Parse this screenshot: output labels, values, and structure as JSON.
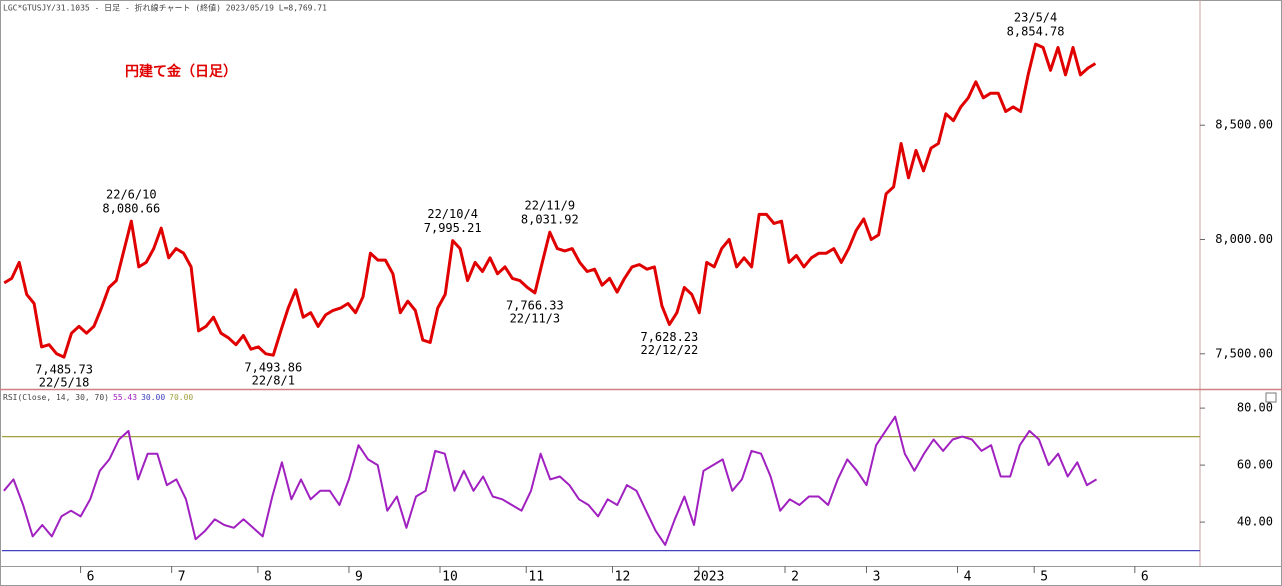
{
  "chart_data": [
    {
      "type": "line",
      "header": "LGC*GTUSJY/31.1035 - 日足 - 折れ線チャート (終値)  2023/05/19 L=8,769.71",
      "title": "円建て金（日足）",
      "color": "#e00000",
      "categories": [
        null,
        null,
        null,
        null,
        null,
        null,
        null,
        null,
        "22/5/18",
        null,
        null,
        null,
        null,
        null,
        null,
        null,
        null,
        "22/6/10",
        null,
        null,
        null,
        null,
        null,
        null,
        null,
        null,
        null,
        null,
        null,
        null,
        null,
        null,
        null,
        null,
        null,
        null,
        "22/8/1",
        null,
        null,
        null,
        null,
        null,
        null,
        null,
        null,
        null,
        null,
        null,
        null,
        null,
        null,
        null,
        null,
        null,
        null,
        null,
        null,
        null,
        null,
        null,
        "22/10/4",
        null,
        null,
        null,
        null,
        null,
        null,
        null,
        null,
        null,
        null,
        "22/11/3",
        null,
        "22/11/9",
        null,
        null,
        null,
        null,
        null,
        null,
        null,
        null,
        null,
        null,
        null,
        null,
        null,
        null,
        null,
        "22/12/22",
        null,
        null,
        null,
        null,
        null,
        null,
        null,
        null,
        null,
        null,
        null,
        null,
        null,
        null,
        null,
        null,
        null,
        null,
        null,
        null,
        null,
        null,
        null,
        null,
        null,
        null,
        null,
        null,
        null,
        null,
        null,
        null,
        null,
        null,
        null,
        null,
        null,
        null,
        null,
        null,
        null,
        null,
        null,
        null,
        null,
        null,
        null,
        null,
        "23/5/4",
        null,
        null,
        null,
        null,
        null,
        null,
        null,
        null
      ],
      "values": [
        7810,
        7830,
        7900,
        7760,
        7720,
        7530,
        7540,
        7500,
        7485.73,
        7590,
        7620,
        7590,
        7620,
        7700,
        7790,
        7820,
        7950,
        8080.66,
        7880,
        7900,
        7960,
        8050,
        7920,
        7960,
        7940,
        7880,
        7600,
        7620,
        7660,
        7590,
        7570,
        7540,
        7580,
        7520,
        7530,
        7500,
        7493.86,
        7600,
        7700,
        7780,
        7660,
        7680,
        7620,
        7670,
        7690,
        7700,
        7720,
        7680,
        7750,
        7940,
        7910,
        7910,
        7850,
        7680,
        7730,
        7690,
        7560,
        7550,
        7700,
        7760,
        7995.21,
        7960,
        7820,
        7900,
        7860,
        7920,
        7850,
        7880,
        7830,
        7820,
        7790,
        7766.33,
        7900,
        8031.92,
        7960,
        7950,
        7960,
        7900,
        7860,
        7870,
        7800,
        7830,
        7770,
        7830,
        7880,
        7890,
        7870,
        7880,
        7710,
        7628.23,
        7680,
        7790,
        7760,
        7680,
        7900,
        7880,
        7960,
        8000,
        7880,
        7920,
        7880,
        8110,
        8110,
        8070,
        8080,
        7900,
        7930,
        7880,
        7920,
        7940,
        7940,
        7960,
        7900,
        7960,
        8040,
        8090,
        8000,
        8020,
        8200,
        8230,
        8420,
        8270,
        8390,
        8300,
        8400,
        8420,
        8550,
        8520,
        8580,
        8620,
        8690,
        8620,
        8640,
        8640,
        8560,
        8580,
        8560,
        8720,
        8854.78,
        8840,
        8740,
        8840,
        8720,
        8840,
        8720,
        8750,
        8770
      ],
      "value_labels": [
        null,
        null,
        null,
        null,
        null,
        null,
        null,
        null,
        "7,485.73",
        null,
        null,
        null,
        null,
        null,
        null,
        null,
        null,
        "8,080.66",
        null,
        null,
        null,
        null,
        null,
        null,
        null,
        null,
        null,
        null,
        null,
        null,
        null,
        null,
        null,
        null,
        null,
        null,
        "7,493.86",
        null,
        null,
        null,
        null,
        null,
        null,
        null,
        null,
        null,
        null,
        null,
        null,
        null,
        null,
        null,
        null,
        null,
        null,
        null,
        null,
        null,
        null,
        null,
        "7,995.21",
        null,
        null,
        null,
        null,
        null,
        null,
        null,
        null,
        null,
        null,
        "7,766.33",
        null,
        "8,031.92",
        null,
        null,
        null,
        null,
        null,
        null,
        null,
        null,
        null,
        null,
        null,
        null,
        null,
        null,
        null,
        "7,628.23",
        null,
        null,
        null,
        null,
        null,
        null,
        null,
        null,
        null,
        null,
        null,
        null,
        null,
        null,
        null,
        null,
        null,
        null,
        null,
        null,
        null,
        null,
        null,
        null,
        null,
        null,
        null,
        null,
        null,
        null,
        null,
        null,
        null,
        null,
        null,
        null,
        null,
        null,
        null,
        null,
        null,
        null,
        null,
        null,
        null,
        null,
        null,
        null,
        "8,854.78",
        null,
        null,
        null,
        null,
        null,
        null,
        null,
        null
      ],
      "xlim": [
        -0.3,
        160
      ],
      "ylim": [
        7346,
        9039
      ],
      "yticks": [
        {
          "value": 7500,
          "label": "7,500.00"
        },
        {
          "value": 8000,
          "label": "8,000.00"
        },
        {
          "value": 8500,
          "label": "8,500.00"
        }
      ]
    },
    {
      "type": "line",
      "header": "RSI(Close, 14, 30, 70)",
      "header_values": [
        {
          "text": "55.43",
          "color": "#a020c0"
        },
        {
          "text": "30.00",
          "color": "#4040c0"
        },
        {
          "text": "70.00",
          "color": "#a0a040"
        }
      ],
      "color": "#a020c0",
      "values": [
        51,
        55,
        46,
        35,
        39,
        35,
        42,
        44,
        42,
        48,
        58,
        62,
        69,
        72,
        55,
        64,
        64,
        53,
        55,
        48,
        34,
        37,
        41,
        39,
        38,
        41,
        38,
        35,
        49,
        61,
        48,
        55,
        48,
        51,
        51,
        46,
        55,
        67,
        62,
        60,
        44,
        49,
        38,
        49,
        51,
        65,
        64,
        51,
        58,
        51,
        56,
        49,
        48,
        46,
        44,
        51,
        64,
        55,
        56,
        53,
        48,
        46,
        42,
        48,
        46,
        53,
        51,
        44,
        37,
        32,
        41,
        49,
        39,
        58,
        60,
        62,
        51,
        55,
        65,
        64,
        56,
        44,
        48,
        46,
        49,
        49,
        46,
        55,
        62,
        58,
        53,
        67,
        72,
        77,
        64,
        58,
        64,
        69,
        65,
        69,
        70,
        69,
        65,
        67,
        56,
        56,
        67,
        72,
        69,
        60,
        64,
        56,
        61,
        53,
        55
      ],
      "hlines": [
        {
          "value": 30,
          "color": "#4040c0"
        },
        {
          "value": 70,
          "color": "#a0a040"
        }
      ],
      "xlim": [
        -0.2,
        124.8
      ],
      "ylim": [
        24.6,
        86
      ],
      "yticks": [
        {
          "value": 40,
          "label": "40.00"
        },
        {
          "value": 60,
          "label": "60.00"
        },
        {
          "value": 80,
          "label": "80.00"
        }
      ],
      "xticks": [
        {
          "value": 8,
          "label": "6"
        },
        {
          "value": 17.5,
          "label": "7"
        },
        {
          "value": 26.5,
          "label": "8"
        },
        {
          "value": 36,
          "label": "9"
        },
        {
          "value": 45.5,
          "label": "10"
        },
        {
          "value": 54.5,
          "label": "11"
        },
        {
          "value": 63.5,
          "label": "12"
        },
        {
          "value": 72.5,
          "label": "2023"
        },
        {
          "value": 81.5,
          "label": "2"
        },
        {
          "value": 90,
          "label": "3"
        },
        {
          "value": 99.5,
          "label": "4"
        },
        {
          "value": 107.5,
          "label": "5"
        },
        {
          "value": 118,
          "label": "6"
        }
      ]
    }
  ]
}
